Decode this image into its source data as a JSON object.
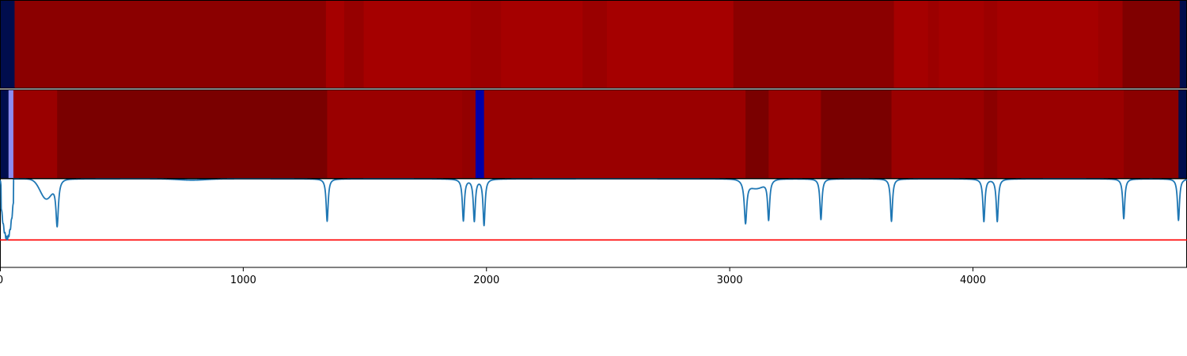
{
  "chart_data": [
    {
      "type": "heatmap",
      "panel": "top",
      "title": "",
      "xlim": [
        0,
        4880
      ],
      "segments": [
        {
          "start": 0,
          "end": 60,
          "color": "#000d4d"
        },
        {
          "start": 60,
          "end": 1340,
          "color": "#8b0000"
        },
        {
          "start": 1340,
          "end": 1415,
          "color": "#a50000"
        },
        {
          "start": 1415,
          "end": 1495,
          "color": "#960000"
        },
        {
          "start": 1495,
          "end": 1935,
          "color": "#a50000"
        },
        {
          "start": 1935,
          "end": 2060,
          "color": "#9c0000"
        },
        {
          "start": 2060,
          "end": 2395,
          "color": "#a50000"
        },
        {
          "start": 2395,
          "end": 2495,
          "color": "#9a0000"
        },
        {
          "start": 2495,
          "end": 3015,
          "color": "#a50000"
        },
        {
          "start": 3015,
          "end": 3675,
          "color": "#8b0000"
        },
        {
          "start": 3675,
          "end": 3815,
          "color": "#a50000"
        },
        {
          "start": 3815,
          "end": 3860,
          "color": "#9c0000"
        },
        {
          "start": 3860,
          "end": 4045,
          "color": "#a50000"
        },
        {
          "start": 4045,
          "end": 4100,
          "color": "#9c0000"
        },
        {
          "start": 4100,
          "end": 4515,
          "color": "#a50000"
        },
        {
          "start": 4515,
          "end": 4615,
          "color": "#9c0000"
        },
        {
          "start": 4615,
          "end": 4850,
          "color": "#800000"
        },
        {
          "start": 4850,
          "end": 4880,
          "color": "#000d4d"
        }
      ]
    },
    {
      "type": "heatmap",
      "panel": "middle",
      "title": "",
      "xlim": [
        0,
        4880
      ],
      "segments": [
        {
          "start": 0,
          "end": 35,
          "color": "#000d4d"
        },
        {
          "start": 35,
          "end": 55,
          "color": "#8c8cf0"
        },
        {
          "start": 55,
          "end": 235,
          "color": "#9a0000"
        },
        {
          "start": 235,
          "end": 1345,
          "color": "#7a0000"
        },
        {
          "start": 1345,
          "end": 1900,
          "color": "#9a0000"
        },
        {
          "start": 1900,
          "end": 1955,
          "color": "#930000"
        },
        {
          "start": 1955,
          "end": 1990,
          "color": "#0000a8"
        },
        {
          "start": 1990,
          "end": 3065,
          "color": "#9a0000"
        },
        {
          "start": 3065,
          "end": 3160,
          "color": "#7a0000"
        },
        {
          "start": 3160,
          "end": 3375,
          "color": "#9a0000"
        },
        {
          "start": 3375,
          "end": 3665,
          "color": "#7a0000"
        },
        {
          "start": 3665,
          "end": 4045,
          "color": "#9a0000"
        },
        {
          "start": 4045,
          "end": 4100,
          "color": "#8b0000"
        },
        {
          "start": 4100,
          "end": 4620,
          "color": "#9a0000"
        },
        {
          "start": 4620,
          "end": 4845,
          "color": "#8b0000"
        },
        {
          "start": 4845,
          "end": 4880,
          "color": "#000d4d"
        }
      ]
    },
    {
      "type": "line",
      "panel": "bottom",
      "title": "",
      "xlabel": "",
      "ylabel": "",
      "xlim": [
        0,
        4880
      ],
      "ylim": [
        -1.0,
        0.0
      ],
      "xticks": [
        0,
        1000,
        2000,
        3000,
        4000
      ],
      "xtick_labels": [
        "0",
        "1000",
        "2000",
        "3000",
        "4000"
      ],
      "threshold": {
        "value": -0.69,
        "color": "#ff0000"
      },
      "series": [
        {
          "color": "#1f77b4",
          "baseline": 0.0,
          "dips": [
            {
              "x": 235,
              "depth": -0.5,
              "width": 6
            },
            {
              "x": 1345,
              "depth": -0.48,
              "width": 5
            },
            {
              "x": 1905,
              "depth": -0.47,
              "width": 5
            },
            {
              "x": 1950,
              "depth": -0.47,
              "width": 5
            },
            {
              "x": 1990,
              "depth": -0.52,
              "width": 5
            },
            {
              "x": 3065,
              "depth": -0.47,
              "width": 6
            },
            {
              "x": 3160,
              "depth": -0.44,
              "width": 5
            },
            {
              "x": 3375,
              "depth": -0.46,
              "width": 5
            },
            {
              "x": 3665,
              "depth": -0.48,
              "width": 5
            },
            {
              "x": 4045,
              "depth": -0.48,
              "width": 5
            },
            {
              "x": 4100,
              "depth": -0.48,
              "width": 5
            },
            {
              "x": 4620,
              "depth": -0.45,
              "width": 5
            },
            {
              "x": 4845,
              "depth": -0.47,
              "width": 5
            }
          ],
          "shoulders": [
            {
              "x": 190,
              "depth": -0.22,
              "width": 35
            },
            {
              "x": 3110,
              "depth": -0.1,
              "width": 45
            },
            {
              "x": 790,
              "depth": -0.015,
              "width": 80
            }
          ],
          "initial_segment": {
            "start": 0,
            "end": 55,
            "min": -0.67
          }
        }
      ]
    }
  ]
}
